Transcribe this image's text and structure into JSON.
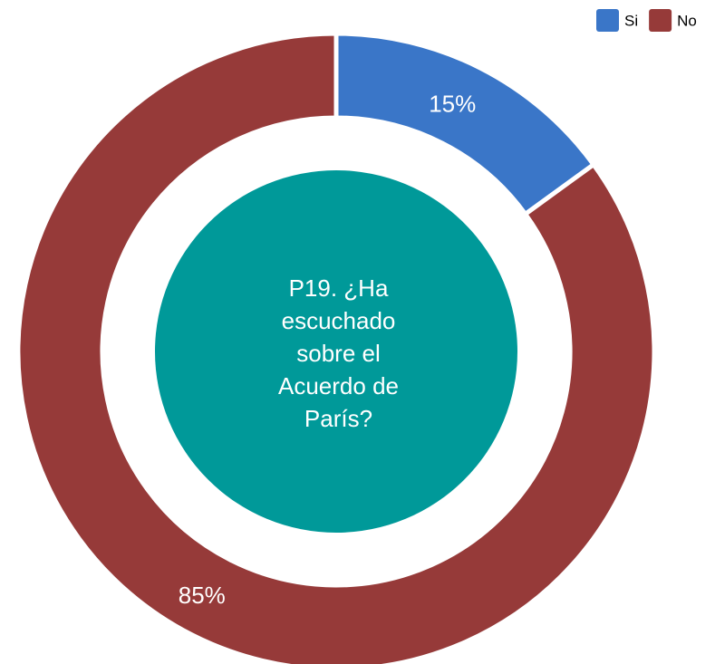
{
  "chart_data": {
    "type": "donut",
    "title": "P19. ¿Ha escuchado sobre el Acuerdo de París?",
    "categories": [
      "Si",
      "No"
    ],
    "values": [
      15,
      85
    ],
    "value_labels": [
      "15%",
      "85%"
    ],
    "colors": [
      "#3a76c8",
      "#963a39"
    ],
    "center_color": "#009999",
    "legend": "top-right"
  }
}
